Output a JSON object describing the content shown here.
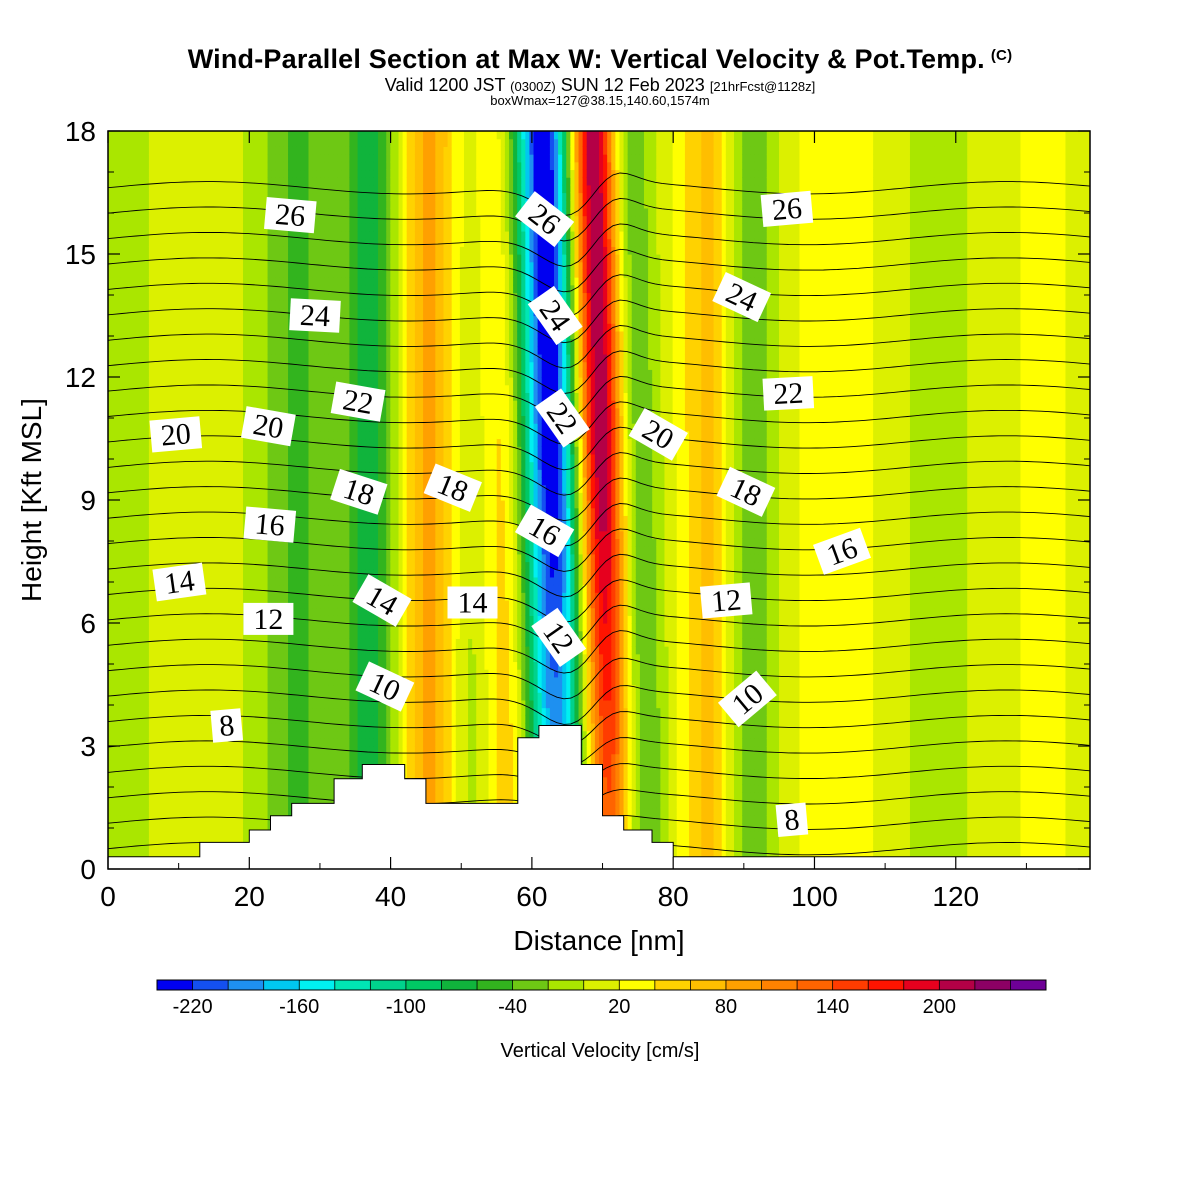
{
  "titles": {
    "main": "Wind-Parallel Section at Max W: Vertical Velocity & Pot.Temp.",
    "copyright": "(C)",
    "valid_prefix": "Valid 1200 JST",
    "valid_zulu": "(0300Z)",
    "valid_date": "SUN 12 Feb 2023",
    "valid_run": "[21hrFcst@1128z]",
    "boxwmax": "boxWmax=127@38.15,140.60,1574m"
  },
  "chart_data": {
    "type": "heatmap",
    "xlabel": "Distance [nm]",
    "ylabel": "Height [Kft MSL]",
    "xlim": [
      0,
      139
    ],
    "ylim": [
      0,
      18
    ],
    "x_ticks": [
      "0",
      "20",
      "40",
      "60",
      "80",
      "100",
      "120"
    ],
    "y_ticks": [
      "0",
      "3",
      "6",
      "9",
      "12",
      "15",
      "18"
    ],
    "colorbar": {
      "label": "Vertical Velocity [cm/s]",
      "tick_labels": [
        "-220",
        "-160",
        "-100",
        "-40",
        "20",
        "80",
        "140",
        "200"
      ],
      "colors": [
        "#0000f0",
        "#1450f0",
        "#1e90f0",
        "#00c8f0",
        "#00f0f0",
        "#00e6b4",
        "#00d28c",
        "#00c864",
        "#10b43c",
        "#32b41e",
        "#6ec814",
        "#aae600",
        "#dcf000",
        "#ffff00",
        "#ffd200",
        "#ffbe00",
        "#ffa000",
        "#ff8200",
        "#ff6400",
        "#ff3c00",
        "#ff1400",
        "#e6001e",
        "#b40046",
        "#8c0064",
        "#6e0096"
      ]
    },
    "vertical_velocity_bands": [
      {
        "x": 8,
        "w": 14,
        "v": -20
      },
      {
        "x": 12,
        "w": 5,
        "v": 10
      },
      {
        "x": 27,
        "w": 3.5,
        "v": -50
      },
      {
        "x": 37,
        "w": 2.8,
        "v": -80
      },
      {
        "x": 45.5,
        "w": 2.8,
        "v": 70
      },
      {
        "x": 52,
        "w": 2.5,
        "v": -40
      },
      {
        "x": 56,
        "w": 2.8,
        "v": 50
      },
      {
        "x": 61.5,
        "w": 2.2,
        "v": -110
      },
      {
        "x": 64.5,
        "w": 2.2,
        "v": -210
      },
      {
        "x": 71,
        "w": 2.2,
        "v": 220
      },
      {
        "x": 75.5,
        "w": 2.6,
        "v": -60
      },
      {
        "x": 85.5,
        "w": 2.8,
        "v": 60
      },
      {
        "x": 90.5,
        "w": 3,
        "v": -60
      },
      {
        "x": 104,
        "w": 5,
        "v": 20
      },
      {
        "x": 117,
        "w": 7,
        "v": -20
      },
      {
        "x": 131,
        "w": 4,
        "v": 10
      }
    ],
    "terrain_kft": {
      "x": [
        0,
        13,
        13,
        20,
        20,
        23,
        23,
        26,
        26,
        32,
        32,
        36,
        36,
        42,
        42,
        45,
        45,
        58,
        58,
        61,
        61,
        67,
        67,
        70,
        70,
        73,
        73,
        77,
        77,
        80,
        80,
        84,
        84,
        139
      ],
      "top": [
        0.3,
        0.3,
        0.65,
        0.65,
        0.95,
        0.95,
        1.3,
        1.3,
        1.6,
        1.6,
        2.2,
        2.2,
        2.55,
        2.55,
        2.2,
        2.2,
        1.6,
        1.6,
        3.2,
        3.2,
        3.5,
        3.5,
        2.55,
        2.55,
        1.3,
        1.3,
        0.95,
        0.95,
        0.65,
        0.65,
        0.3,
        0.3,
        0.3,
        0.3
      ]
    },
    "potential_temperature": {
      "units": "C",
      "interval": 1,
      "levels_min": 1,
      "levels_max": 28,
      "labels": [
        {
          "text": "26",
          "x": 25.8,
          "y": 15.95,
          "rot": 5
        },
        {
          "text": "24",
          "x": 29.3,
          "y": 13.5,
          "rot": 3
        },
        {
          "text": "22",
          "x": 35.4,
          "y": 11.4,
          "rot": 10
        },
        {
          "text": "20",
          "x": 9.6,
          "y": 10.6,
          "rot": -5
        },
        {
          "text": "20",
          "x": 22.7,
          "y": 10.8,
          "rot": 10
        },
        {
          "text": "18",
          "x": 35.5,
          "y": 9.2,
          "rot": 18
        },
        {
          "text": "18",
          "x": 48.8,
          "y": 9.3,
          "rot": 22
        },
        {
          "text": "16",
          "x": 22.9,
          "y": 8.4,
          "rot": 5
        },
        {
          "text": "14",
          "x": 10.1,
          "y": 7.0,
          "rot": -8
        },
        {
          "text": "14",
          "x": 38.8,
          "y": 6.55,
          "rot": 30
        },
        {
          "text": "14",
          "x": 51.6,
          "y": 6.5,
          "rot": 0
        },
        {
          "text": "12",
          "x": 22.7,
          "y": 6.1,
          "rot": 0
        },
        {
          "text": "10",
          "x": 39.2,
          "y": 4.45,
          "rot": 25
        },
        {
          "text": "8",
          "x": 16.8,
          "y": 3.5,
          "rot": -5
        },
        {
          "text": "26",
          "x": 61.8,
          "y": 15.85,
          "rot": 38
        },
        {
          "text": "24",
          "x": 63.3,
          "y": 13.5,
          "rot": 55
        },
        {
          "text": "22",
          "x": 64.3,
          "y": 11.0,
          "rot": 55
        },
        {
          "text": "16",
          "x": 61.8,
          "y": 8.25,
          "rot": 30
        },
        {
          "text": "12",
          "x": 63.8,
          "y": 5.65,
          "rot": 55
        },
        {
          "text": "20",
          "x": 77.9,
          "y": 10.6,
          "rot": 30
        },
        {
          "text": "26",
          "x": 96.1,
          "y": 16.1,
          "rot": -5
        },
        {
          "text": "24",
          "x": 89.7,
          "y": 13.95,
          "rot": 25
        },
        {
          "text": "22",
          "x": 96.3,
          "y": 11.6,
          "rot": -3
        },
        {
          "text": "18",
          "x": 90.3,
          "y": 9.2,
          "rot": 25
        },
        {
          "text": "16",
          "x": 103.9,
          "y": 7.75,
          "rot": -20
        },
        {
          "text": "12",
          "x": 87.5,
          "y": 6.55,
          "rot": -5
        },
        {
          "text": "10",
          "x": 90.5,
          "y": 4.15,
          "rot": -40
        },
        {
          "text": "8",
          "x": 96.8,
          "y": 1.2,
          "rot": -5
        }
      ]
    }
  }
}
